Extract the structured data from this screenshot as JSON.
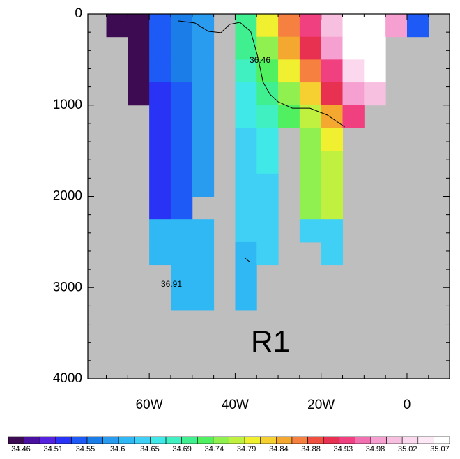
{
  "chart_data": {
    "type": "heatmap",
    "annotation": "R1",
    "xlim": [
      -74.3,
      9.9
    ],
    "ylim": [
      4000,
      0
    ],
    "xticks": [
      {
        "value": -60,
        "label": "60W"
      },
      {
        "value": -40,
        "label": "40W"
      },
      {
        "value": -20,
        "label": "20W"
      },
      0
    ],
    "xminorticks": [
      -70,
      -65,
      -55,
      -50,
      -45,
      -35,
      -30,
      -25,
      -15,
      -10,
      -5,
      5
    ],
    "yticks": [
      0,
      1000,
      2000,
      3000,
      4000
    ],
    "yminorticks": [
      200,
      400,
      600,
      800,
      1200,
      1400,
      1600,
      1800,
      2200,
      2400,
      2600,
      2800,
      3200,
      3400,
      3600,
      3800
    ],
    "background": "#bebebe",
    "x_edges": [
      -70,
      -65,
      -60,
      -55,
      -50,
      -45,
      -40,
      -35,
      -30,
      -25,
      -20,
      -15,
      -10,
      -5,
      0,
      5
    ],
    "y_edges": [
      0,
      250,
      500,
      750,
      1000,
      1250,
      1500,
      1750,
      2000,
      2250,
      2500,
      2750,
      3000,
      3250
    ],
    "z": [
      [
        34.46,
        34.46,
        34.55,
        34.58,
        34.6,
        null,
        34.72,
        34.8,
        34.86,
        34.93,
        35.0,
        35.07,
        35.07,
        34.98,
        34.55
      ],
      [
        null,
        34.46,
        34.55,
        34.58,
        34.6,
        null,
        34.72,
        34.76,
        34.84,
        34.9,
        34.97,
        35.07,
        35.07,
        null,
        null
      ],
      [
        null,
        34.46,
        34.55,
        34.58,
        34.6,
        null,
        34.69,
        34.74,
        34.8,
        34.86,
        34.92,
        35.02,
        35.05,
        null,
        null
      ],
      [
        null,
        34.46,
        34.53,
        34.56,
        34.6,
        null,
        34.67,
        34.72,
        34.76,
        34.82,
        34.9,
        34.97,
        35.0,
        null,
        null
      ],
      [
        null,
        null,
        34.53,
        34.55,
        34.6,
        null,
        34.66,
        34.69,
        34.74,
        34.78,
        34.84,
        34.93,
        null,
        null,
        null
      ],
      [
        null,
        null,
        34.53,
        34.55,
        34.6,
        null,
        34.65,
        34.67,
        null,
        34.76,
        34.8,
        null,
        null,
        null,
        null
      ],
      [
        null,
        null,
        34.53,
        34.55,
        34.6,
        null,
        34.65,
        34.66,
        null,
        34.76,
        34.78,
        null,
        null,
        null,
        null
      ],
      [
        null,
        null,
        34.53,
        34.55,
        34.6,
        null,
        34.65,
        34.65,
        null,
        34.76,
        34.77,
        null,
        null,
        null,
        null
      ],
      [
        null,
        null,
        34.53,
        34.55,
        null,
        null,
        34.65,
        34.65,
        null,
        34.76,
        34.77,
        null,
        null,
        null,
        null
      ],
      [
        null,
        null,
        34.62,
        34.62,
        34.63,
        null,
        34.64,
        34.64,
        null,
        34.65,
        34.65,
        null,
        null,
        null,
        null
      ],
      [
        null,
        null,
        34.62,
        34.62,
        34.63,
        null,
        34.63,
        34.64,
        null,
        null,
        34.65,
        null,
        null,
        null,
        null
      ],
      [
        null,
        null,
        null,
        34.62,
        34.62,
        null,
        34.62,
        null,
        null,
        null,
        null,
        null,
        null,
        null,
        null
      ],
      [
        null,
        null,
        null,
        34.62,
        34.62,
        null,
        34.62,
        null,
        null,
        null,
        null,
        null,
        null,
        null,
        null
      ]
    ],
    "contours": [
      {
        "label": "36.46",
        "x": [
          -53.3,
          -49.4,
          -46.2,
          -43.3,
          -41.3,
          -38.9,
          -36.4,
          -34.8,
          -33.5,
          -31.9,
          -30.0,
          -26.7,
          -22.6,
          -18.5,
          -14.5
        ],
        "y": [
          76,
          99,
          191,
          206,
          115,
          92,
          191,
          459,
          749,
          880,
          964,
          1033,
          1033,
          1109,
          1239
        ]
      },
      {
        "label": "36.91",
        "x": [
          -37.7,
          -36.7
        ],
        "y": [
          2677,
          2715
        ]
      }
    ],
    "colorbar": {
      "levels": [
        34.46,
        34.51,
        34.55,
        34.6,
        34.65,
        34.69,
        34.74,
        34.79,
        34.84,
        34.88,
        34.93,
        34.98,
        35.02,
        35.07
      ],
      "colors": [
        "#3d0b52",
        "#4a10a0",
        "#5522e0",
        "#2833f5",
        "#1e5af5",
        "#1a7de8",
        "#2a9cf0",
        "#30b8f5",
        "#40d0f5",
        "#40e8e8",
        "#40f0c0",
        "#40f090",
        "#50f060",
        "#90f050",
        "#c0f040",
        "#f0f030",
        "#f5d030",
        "#f5a830",
        "#f58040",
        "#f05040",
        "#e83050",
        "#f04080",
        "#f070b0",
        "#f5a0d0",
        "#f8c0e0",
        "#fbd8ee",
        "#fde8f5",
        "#ffffff"
      ]
    }
  }
}
